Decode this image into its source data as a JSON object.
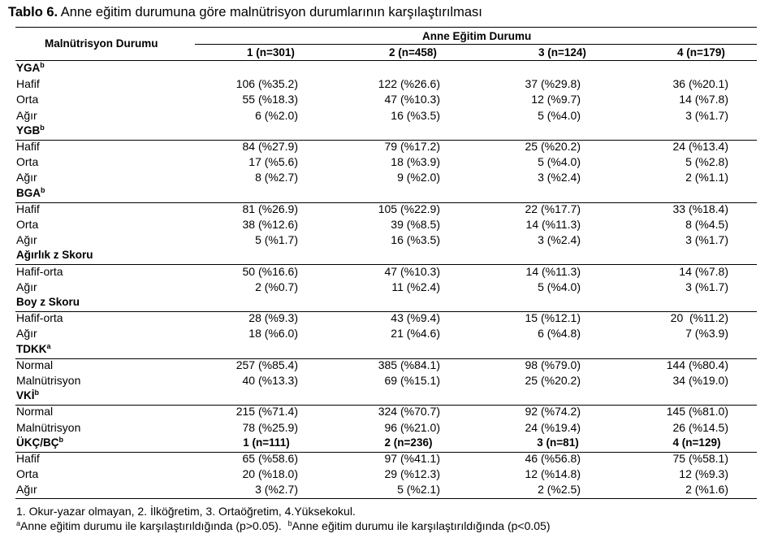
{
  "title": {
    "prefix": "Tablo 6.",
    "text": " Anne eğitim durumuna göre malnütrisyon durumlarının karşılaştırılması"
  },
  "header": {
    "row_label": "Malnütrisyon Durumu",
    "group": "Anne Eğitim Durumu",
    "columns": [
      "1 (n=301)",
      "2 (n=458)",
      "3 (n=124)",
      "4 (n=179)"
    ]
  },
  "sections": [
    {
      "name": "YGA",
      "sup": "b",
      "rows": [
        {
          "label": "Hafif",
          "values": [
            "106 (%35.2)",
            "122 (%26.6)",
            "37 (%29.8)",
            "36 (%20.1)"
          ]
        },
        {
          "label": "Orta",
          "values": [
            "55 (%18.3)",
            "47 (%10.3)",
            "12 (%9.7)",
            "14 (%7.8)"
          ]
        },
        {
          "label": "Ağır",
          "values": [
            "6 (%2.0)",
            "16 (%3.5)",
            "5 (%4.0)",
            "3 (%1.7)"
          ]
        }
      ]
    },
    {
      "name": "YGB",
      "sup": "b",
      "rows": [
        {
          "label": "Hafif",
          "values": [
            "84 (%27.9)",
            "79 (%17.2)",
            "25 (%20.2)",
            "24 (%13.4)"
          ]
        },
        {
          "label": "Orta",
          "values": [
            "17 (%5.6)",
            "18 (%3.9)",
            "5 (%4.0)",
            "5 (%2.8)"
          ]
        },
        {
          "label": "Ağır",
          "values": [
            "8 (%2.7)",
            "9 (%2.0)",
            "3 (%2.4)",
            "2 (%1.1)"
          ]
        }
      ]
    },
    {
      "name": "BGA",
      "sup": "b",
      "rows": [
        {
          "label": "Hafif",
          "values": [
            "81 (%26.9)",
            "105 (%22.9)",
            "22 (%17.7)",
            "33 (%18.4)"
          ]
        },
        {
          "label": "Orta",
          "values": [
            "38 (%12.6)",
            "39 (%8.5)",
            "14 (%11.3)",
            "8 (%4.5)"
          ]
        },
        {
          "label": "Ağır",
          "values": [
            "5 (%1.7)",
            "16 (%3.5)",
            "3 (%2.4)",
            "3 (%1.7)"
          ]
        }
      ]
    },
    {
      "name": "Ağırlık z Skoru",
      "sup": "",
      "rows": [
        {
          "label": "Hafif-orta",
          "values": [
            "50 (%16.6)",
            "47 (%10.3)",
            "14 (%11.3)",
            "14 (%7.8)"
          ]
        },
        {
          "label": "Ağır",
          "values": [
            "2 (%0.7)",
            "11 (%2.4)",
            "5 (%4.0)",
            "3 (%1.7)"
          ]
        }
      ]
    },
    {
      "name": "Boy z Skoru",
      "sup": "",
      "rows": [
        {
          "label": "Hafif-orta",
          "values": [
            "28 (%9.3)",
            "43 (%9.4)",
            "15 (%12.1)",
            "20  (%11.2)"
          ]
        },
        {
          "label": "Ağır",
          "values": [
            "18 (%6.0)",
            "21 (%4.6)",
            "6 (%4.8)",
            "7 (%3.9)"
          ]
        }
      ]
    },
    {
      "name": "TDKK",
      "sup": "a",
      "rows": [
        {
          "label": "Normal",
          "values": [
            "257 (%85.4)",
            "385 (%84.1)",
            "98 (%79.0)",
            "144 (%80.4)"
          ]
        },
        {
          "label": "Malnütrisyon",
          "values": [
            "40 (%13.3)",
            "69 (%15.1)",
            "25 (%20.2)",
            "34 (%19.0)"
          ]
        }
      ]
    },
    {
      "name": "VKİ",
      "sup": "b",
      "rows": [
        {
          "label": "Normal",
          "values": [
            "215 (%71.4)",
            "324 (%70.7)",
            "92 (%74.2)",
            "145 (%81.0)"
          ]
        },
        {
          "label": "Malnütrisyon",
          "values": [
            "78 (%25.9)",
            "96 (%21.0)",
            "24 (%19.4)",
            "26 (%14.5)"
          ]
        }
      ]
    },
    {
      "name": "ÜKÇ/BÇ",
      "sup": "b",
      "headers": [
        "1 (n=111)",
        "2 (n=236)",
        "3 (n=81)",
        "4 (n=129)"
      ],
      "rows": [
        {
          "label": "Hafif",
          "values": [
            "65 (%58.6)",
            "97 (%41.1)",
            "46 (%56.8)",
            "75 (%58.1)"
          ]
        },
        {
          "label": "Orta",
          "values": [
            "20 (%18.0)",
            "29 (%12.3)",
            "12 (%14.8)",
            "12 (%9.3)"
          ]
        },
        {
          "label": "Ağır",
          "values": [
            "3 (%2.7)",
            "5 (%2.1)",
            "2 (%2.5)",
            "2 (%1.6)"
          ]
        }
      ]
    }
  ],
  "footnotes": {
    "line1": "1. Okur-yazar olmayan, 2. İlköğretim, 3. Ortaöğretim, 4.Yüksekokul.",
    "line2_sup_a": "a",
    "line2_a": "Anne eğitim durumu ile karşılaştırıldığında (p>0.05).",
    "line2_sup_b": "b",
    "line2_b": "Anne eğitim durumu ile karşılaştırıldığında (p<0.05)"
  }
}
